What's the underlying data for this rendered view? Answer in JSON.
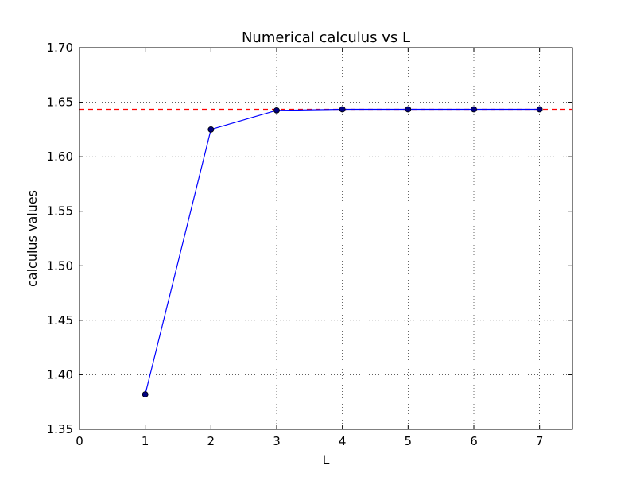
{
  "chart_data": {
    "type": "line",
    "title": "Numerical calculus vs L",
    "xlabel": "L",
    "ylabel": "calculus values",
    "xlim": [
      0,
      7.5
    ],
    "ylim": [
      1.35,
      1.7
    ],
    "xticks": [
      0,
      1,
      2,
      3,
      4,
      5,
      6,
      7
    ],
    "yticks": [
      1.35,
      1.4,
      1.45,
      1.5,
      1.55,
      1.6,
      1.65,
      1.7
    ],
    "xtick_labels": [
      "0",
      "1",
      "2",
      "3",
      "4",
      "5",
      "6",
      "7"
    ],
    "ytick_labels": [
      "1.35",
      "1.40",
      "1.45",
      "1.50",
      "1.55",
      "1.60",
      "1.65",
      "1.70"
    ],
    "grid": true,
    "series": [
      {
        "x": [
          1,
          2,
          3,
          4,
          5,
          6,
          7
        ],
        "values": [
          1.382,
          1.625,
          1.6425,
          1.6435,
          1.6435,
          1.6435,
          1.6435
        ],
        "color": "#0000ff",
        "marker": "circle",
        "linestyle": "solid"
      }
    ],
    "reference_line": {
      "y": 1.6435,
      "color": "#ff0000",
      "linestyle": "dashed"
    }
  }
}
